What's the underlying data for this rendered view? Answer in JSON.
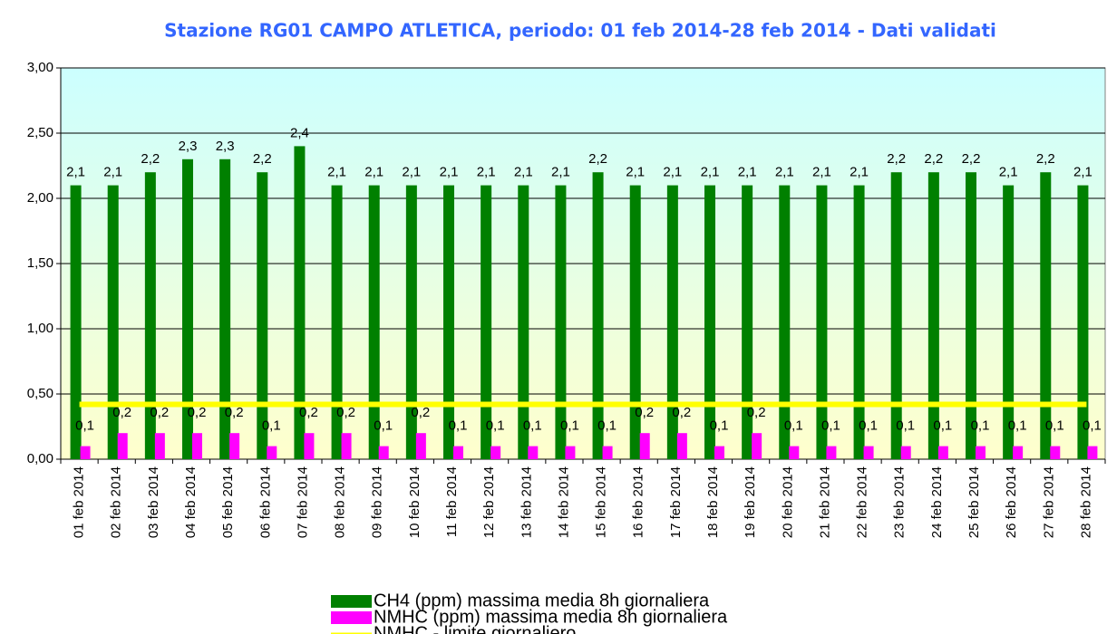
{
  "chart_data": {
    "type": "bar",
    "title": "Stazione RG01 CAMPO ATLETICA, periodo: 01 feb 2014-28 feb 2014 - Dati validati",
    "categories": [
      "01 feb 2014",
      "02 feb 2014",
      "03 feb 2014",
      "04 feb 2014",
      "05 feb 2014",
      "06 feb 2014",
      "07 feb 2014",
      "08 feb 2014",
      "09 feb 2014",
      "10 feb 2014",
      "11 feb 2014",
      "12 feb 2014",
      "13 feb 2014",
      "14 feb 2014",
      "15 feb 2014",
      "16 feb 2014",
      "17 feb 2014",
      "18 feb 2014",
      "19 feb 2014",
      "20 feb 2014",
      "21 feb 2014",
      "22 feb 2014",
      "23 feb 2014",
      "24 feb 2014",
      "25 feb 2014",
      "26 feb 2014",
      "27 feb 2014",
      "28 feb 2014"
    ],
    "series": [
      {
        "name": "CH4 (ppm) massima media 8h giornaliera",
        "type": "bar",
        "color": "#008000",
        "values": [
          2.1,
          2.1,
          2.2,
          2.3,
          2.3,
          2.2,
          2.4,
          2.1,
          2.1,
          2.1,
          2.1,
          2.1,
          2.1,
          2.1,
          2.2,
          2.1,
          2.1,
          2.1,
          2.1,
          2.1,
          2.1,
          2.1,
          2.2,
          2.2,
          2.2,
          2.1,
          2.2,
          2.1
        ],
        "value_labels": [
          "2,1",
          "2,1",
          "2,2",
          "2,3",
          "2,3",
          "2,2",
          "2,4",
          "2,1",
          "2,1",
          "2,1",
          "2,1",
          "2,1",
          "2,1",
          "2,1",
          "2,2",
          "2,1",
          "2,1",
          "2,1",
          "2,1",
          "2,1",
          "2,1",
          "2,1",
          "2,2",
          "2,2",
          "2,2",
          "2,1",
          "2,2",
          "2,1"
        ]
      },
      {
        "name": "NMHC (ppm) massima media 8h giornaliera",
        "type": "bar",
        "color": "#ff00ff",
        "values": [
          0.1,
          0.2,
          0.2,
          0.2,
          0.2,
          0.1,
          0.2,
          0.2,
          0.1,
          0.2,
          0.1,
          0.1,
          0.1,
          0.1,
          0.1,
          0.2,
          0.2,
          0.1,
          0.2,
          0.1,
          0.1,
          0.1,
          0.1,
          0.1,
          0.1,
          0.1,
          0.1,
          0.1
        ],
        "value_labels": [
          "0,1",
          "0,2",
          "0,2",
          "0,2",
          "0,2",
          "0,1",
          "0,2",
          "0,2",
          "0,1",
          "0,2",
          "0,1",
          "0,1",
          "0,1",
          "0,1",
          "0,1",
          "0,2",
          "0,2",
          "0,1",
          "0,2",
          "0,1",
          "0,1",
          "0,1",
          "0,1",
          "0,1",
          "0,1",
          "0,1",
          "0,1",
          "0,1"
        ]
      },
      {
        "name": "NMHC - limite giornaliero",
        "type": "line",
        "color": "#ffff00",
        "values": [
          0.42,
          0.42,
          0.42,
          0.42,
          0.42,
          0.42,
          0.42,
          0.42,
          0.42,
          0.42,
          0.42,
          0.42,
          0.42,
          0.42,
          0.42,
          0.42,
          0.42,
          0.42,
          0.42,
          0.42,
          0.42,
          0.42,
          0.42,
          0.42,
          0.42,
          0.42,
          0.42,
          0.42
        ]
      }
    ],
    "ylim": [
      0,
      3
    ],
    "yticks": [
      {
        "value": 0,
        "label": "0,00"
      },
      {
        "value": 0.5,
        "label": "0,50"
      },
      {
        "value": 1,
        "label": "1,00"
      },
      {
        "value": 1.5,
        "label": "1,50"
      },
      {
        "value": 2,
        "label": "2,00"
      },
      {
        "value": 2.5,
        "label": "2,50"
      },
      {
        "value": 3,
        "label": "3,00"
      }
    ],
    "grid": true
  }
}
